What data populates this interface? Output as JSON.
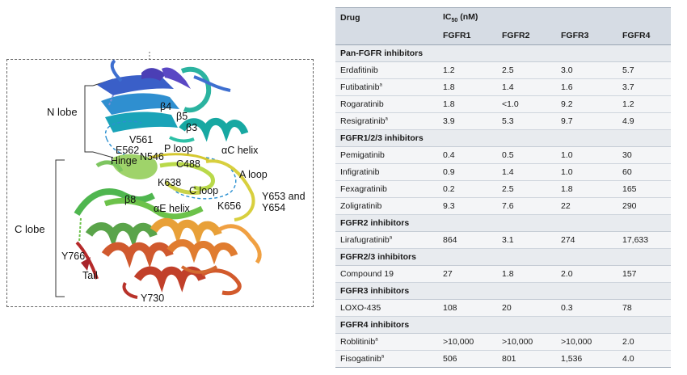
{
  "figure": {
    "lobes": {
      "n_lobe": "N lobe",
      "c_lobe": "C lobe"
    },
    "labels": {
      "b4": "β4",
      "b5": "β5",
      "b3": "β3",
      "v561": "V561",
      "e562": "E562",
      "hinge": "Hinge",
      "ploop": "P loop",
      "n546": "N546",
      "c488": "C488",
      "ac_helix": "αC helix",
      "aloop": "A loop",
      "k638": "K638",
      "cloop": "C loop",
      "b8": "β8",
      "ae_helix": "αE helix",
      "k656": "K656",
      "y653_line1": "Y653 and",
      "y653_line2": "Y654",
      "y766": "Y766",
      "tail": "Tail",
      "y730": "Y730"
    }
  },
  "table": {
    "header": {
      "drug": "Drug",
      "ic50_prefix": "IC",
      "ic50_sub": "50",
      "ic50_suffix": " (nM)",
      "cols": [
        "FGFR1",
        "FGFR2",
        "FGFR3",
        "FGFR4"
      ]
    },
    "groups": [
      {
        "title": "Pan-FGFR inhibitors",
        "rows": [
          {
            "drug": "Erdafitinib",
            "sup": "",
            "v": [
              "1.2",
              "2.5",
              "3.0",
              "5.7"
            ]
          },
          {
            "drug": "Futibatinib",
            "sup": "a",
            "v": [
              "1.8",
              "1.4",
              "1.6",
              "3.7"
            ]
          },
          {
            "drug": "Rogaratinib",
            "sup": "",
            "v": [
              "1.8",
              "<1.0",
              "9.2",
              "1.2"
            ]
          },
          {
            "drug": "Resigratinib",
            "sup": "a",
            "v": [
              "3.9",
              "5.3",
              "9.7",
              "4.9"
            ]
          }
        ]
      },
      {
        "title": "FGFR1/2/3 inhibitors",
        "rows": [
          {
            "drug": "Pemigatinib",
            "sup": "",
            "v": [
              "0.4",
              "0.5",
              "1.0",
              "30"
            ]
          },
          {
            "drug": "Infigratinib",
            "sup": "",
            "v": [
              "0.9",
              "1.4",
              "1.0",
              "60"
            ]
          },
          {
            "drug": "Fexagratinib",
            "sup": "",
            "v": [
              "0.2",
              "2.5",
              "1.8",
              "165"
            ]
          },
          {
            "drug": "Zoligratinib",
            "sup": "",
            "v": [
              "9.3",
              "7.6",
              "22",
              "290"
            ]
          }
        ]
      },
      {
        "title": "FGFR2 inhibitors",
        "rows": [
          {
            "drug": "Lirafugratinib",
            "sup": "a",
            "v": [
              "864",
              "3.1",
              "274",
              "17,633"
            ]
          }
        ]
      },
      {
        "title": "FGFR2/3 inhibitors",
        "rows": [
          {
            "drug": "Compound 19",
            "sup": "",
            "v": [
              "27",
              "1.8",
              "2.0",
              "157"
            ]
          }
        ]
      },
      {
        "title": "FGFR3 inhibitors",
        "rows": [
          {
            "drug": "LOXO-435",
            "sup": "",
            "v": [
              "108",
              "20",
              "0.3",
              "78"
            ]
          }
        ]
      },
      {
        "title": "FGFR4 inhibitors",
        "rows": [
          {
            "drug": "Roblitinib",
            "sup": "a",
            "v": [
              ">10,000",
              ">10,000",
              ">10,000",
              "2.0"
            ]
          },
          {
            "drug": "Fisogatinib",
            "sup": "a",
            "v": [
              "506",
              "801",
              "1,536",
              "4.0"
            ]
          }
        ]
      }
    ]
  }
}
